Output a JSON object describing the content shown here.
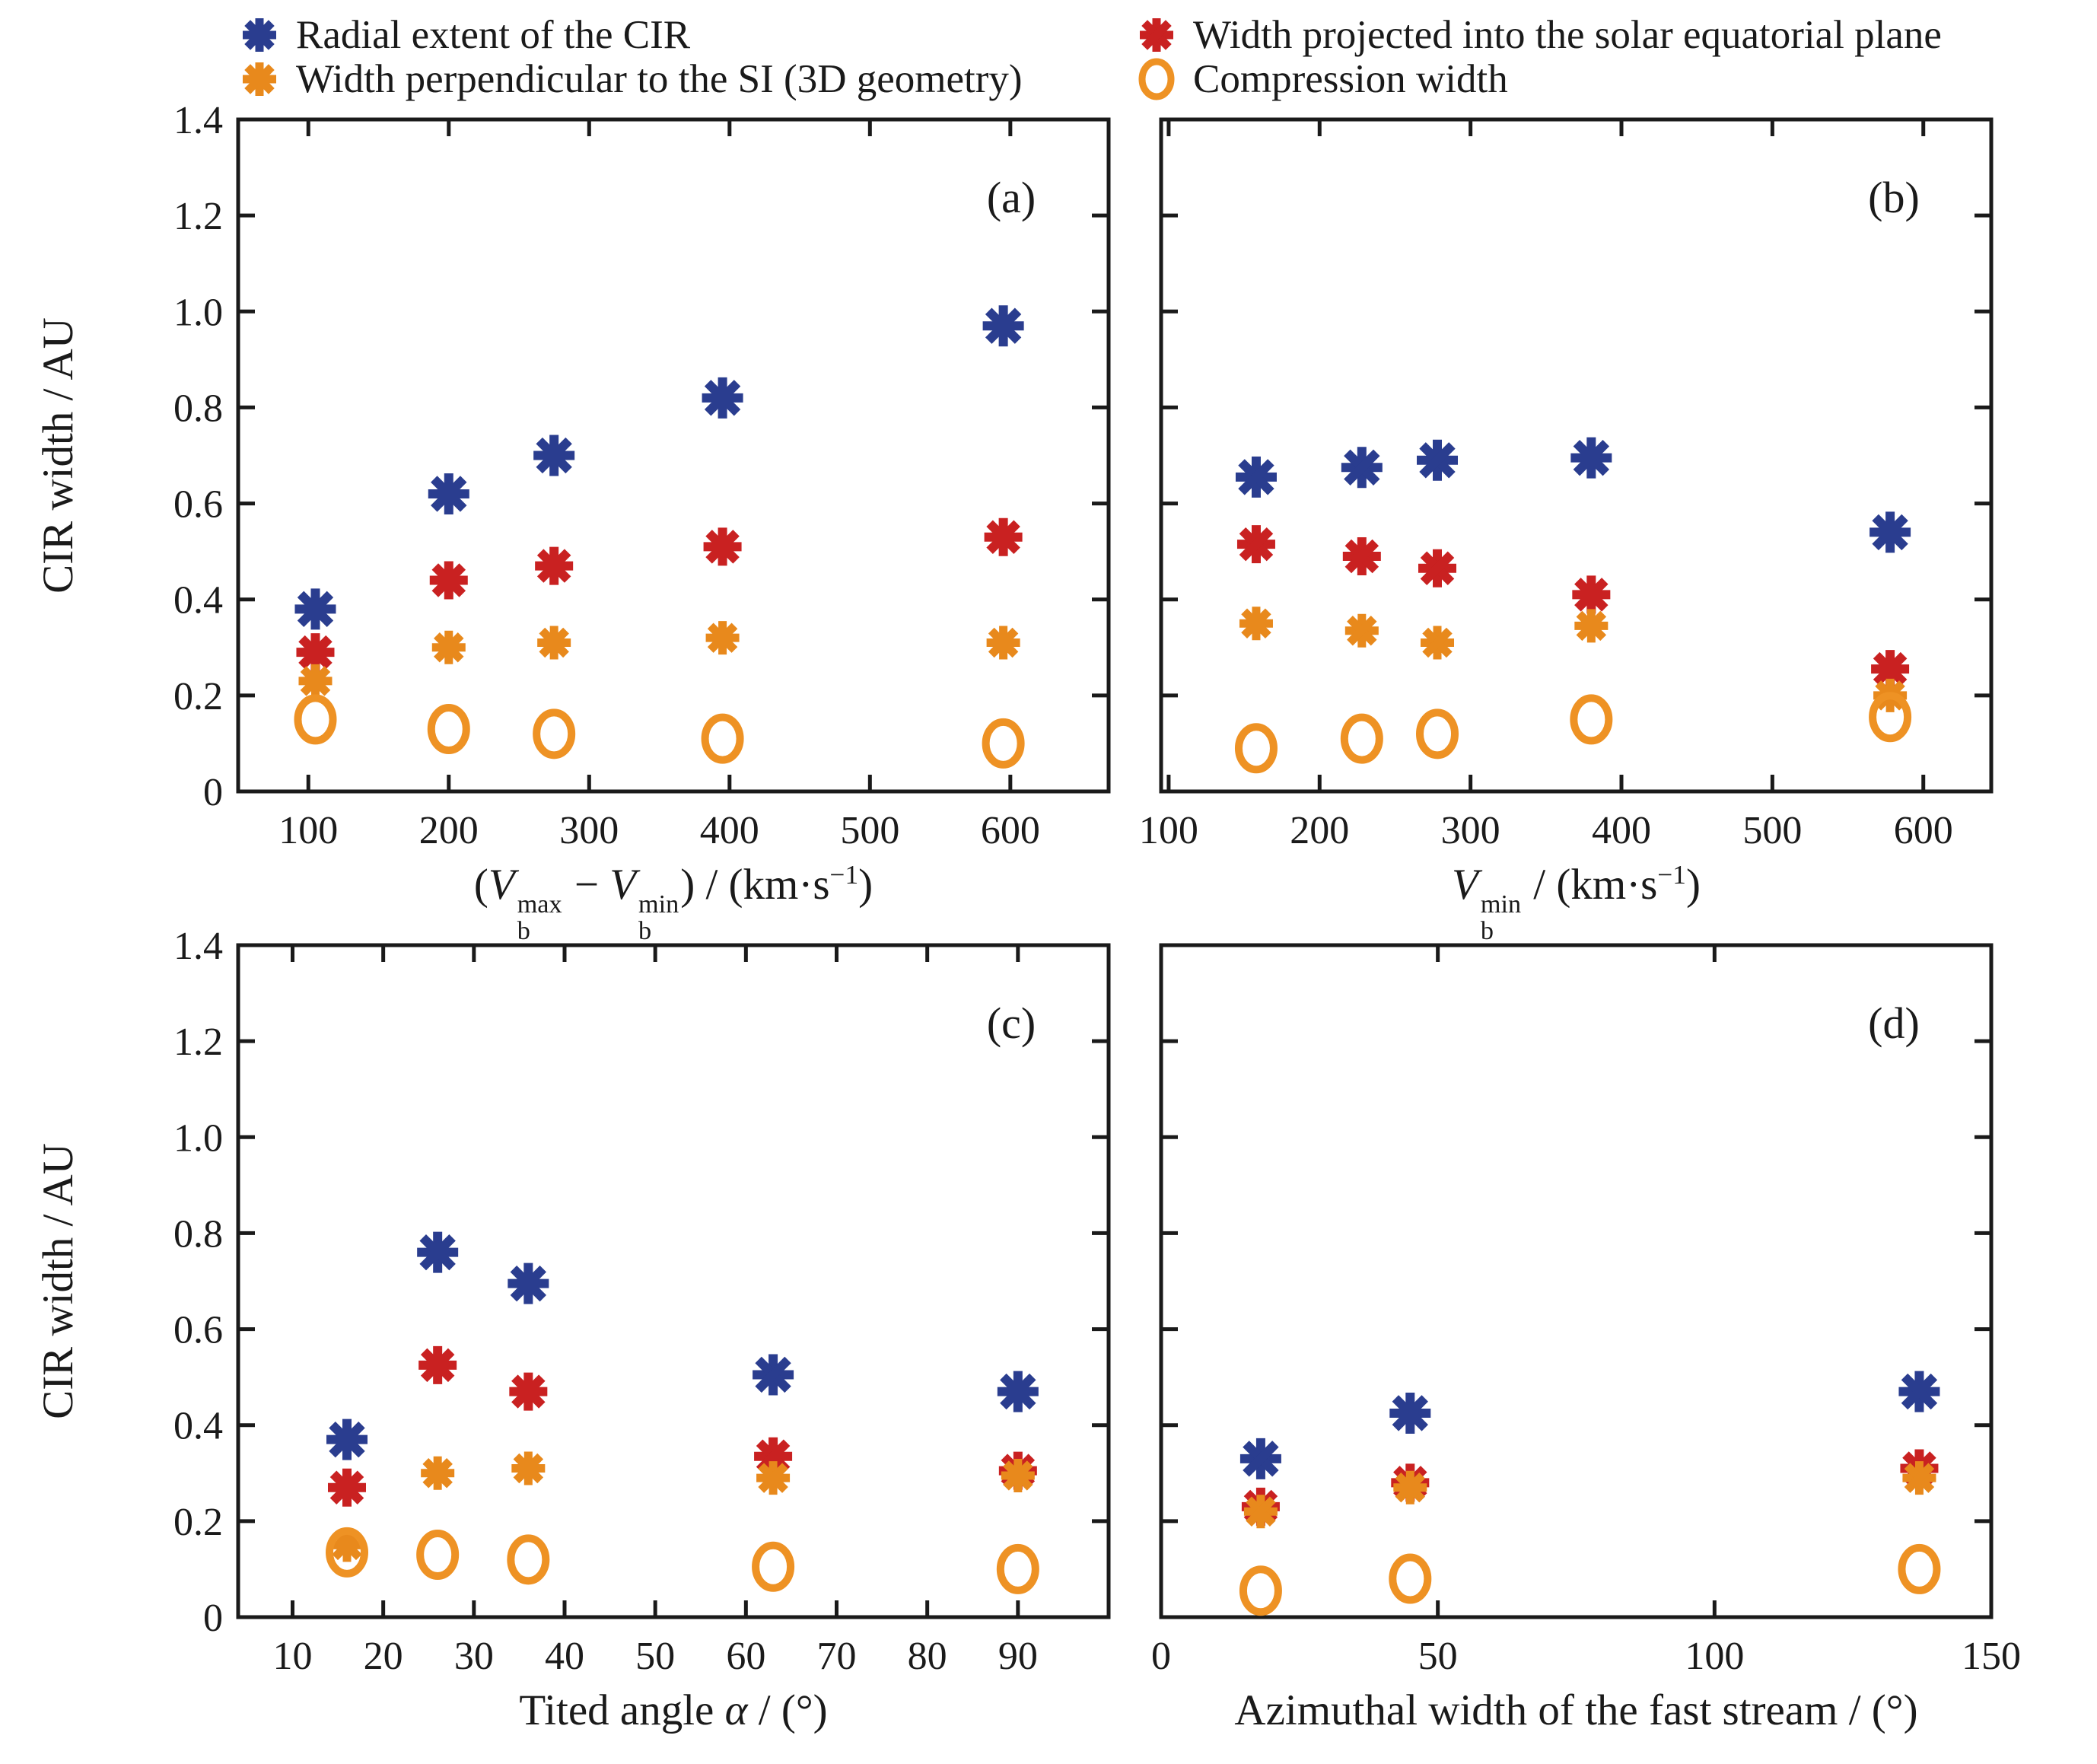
{
  "figure": {
    "background": "#ffffff",
    "frame_color": "#1a1a1a",
    "text_color": "#1a1a1a"
  },
  "colors": {
    "blue": "#2a3d8f",
    "red": "#c92121",
    "orange": "#e8891c",
    "orange_circle": "#ee9224"
  },
  "legend": {
    "items": [
      {
        "marker": "asterisk",
        "color": "#2a3d8f",
        "label": "Radial extent of the CIR",
        "column": 1,
        "row": 1
      },
      {
        "marker": "asterisk",
        "color": "#e8891c",
        "label": "Width perpendicular to the SI (3D geometry)",
        "column": 1,
        "row": 2
      },
      {
        "marker": "asterisk",
        "color": "#c92121",
        "label": "Width projected into the solar equatorial plane",
        "column": 2,
        "row": 1
      },
      {
        "marker": "circle",
        "color": "#ee9224",
        "label": "Compression width",
        "column": 2,
        "row": 2
      }
    ]
  },
  "chart_data": [
    {
      "type": "scatter",
      "panel_tag": "(a)",
      "ylabel": "CIR width / AU",
      "xlabel_segments": [
        {
          "t": "text",
          "v": "("
        },
        {
          "t": "ivar",
          "v": "V"
        },
        {
          "t": "supsub",
          "sup": "max",
          "sub": "b"
        },
        {
          "t": "text",
          "v": " − "
        },
        {
          "t": "ivar",
          "v": "V"
        },
        {
          "t": "supsub",
          "sup": "min",
          "sub": "b"
        },
        {
          "t": "text",
          "v": ") / (km·s"
        },
        {
          "t": "sup",
          "v": "−1"
        },
        {
          "t": "text",
          "v": ")"
        }
      ],
      "xlim": [
        50,
        670
      ],
      "ylim": [
        0,
        1.4
      ],
      "xticks": [
        100,
        200,
        300,
        400,
        500,
        600
      ],
      "ytick_labels": [
        "0",
        "0.2",
        "0.4",
        "0.6",
        "0.8",
        "1.0",
        "1.2",
        "1.4"
      ],
      "show_ytick_labels": true,
      "x": [
        105,
        200,
        275,
        395,
        595
      ],
      "series": [
        {
          "name": "Radial extent of the CIR",
          "marker": "asterisk",
          "color": "#2a3d8f",
          "values": [
            0.38,
            0.62,
            0.7,
            0.82,
            0.97
          ]
        },
        {
          "name": "Width projected into the solar equatorial plane",
          "marker": "asterisk",
          "color": "#c92121",
          "values": [
            0.29,
            0.44,
            0.47,
            0.51,
            0.53
          ]
        },
        {
          "name": "Width perpendicular to the SI (3D geometry)",
          "marker": "asterisk",
          "color": "#e8891c",
          "values": [
            0.23,
            0.3,
            0.31,
            0.32,
            0.31
          ]
        },
        {
          "name": "Compression width",
          "marker": "ellipse",
          "color": "#ee9224",
          "values": [
            0.15,
            0.13,
            0.12,
            0.11,
            0.1
          ]
        }
      ]
    },
    {
      "type": "scatter",
      "panel_tag": "(b)",
      "ylabel": "",
      "xlabel_segments": [
        {
          "t": "ivar",
          "v": "V"
        },
        {
          "t": "supsub",
          "sup": "min",
          "sub": "b"
        },
        {
          "t": "text",
          "v": " / (km·s"
        },
        {
          "t": "sup",
          "v": "−1"
        },
        {
          "t": "text",
          "v": ")"
        }
      ],
      "xlim": [
        95,
        645
      ],
      "ylim": [
        0,
        1.4
      ],
      "xticks": [
        100,
        200,
        300,
        400,
        500,
        600
      ],
      "ytick_labels": [
        "0",
        "0.2",
        "0.4",
        "0.6",
        "0.8",
        "1.0",
        "1.2",
        "1.4"
      ],
      "show_ytick_labels": false,
      "x": [
        158,
        228,
        278,
        380,
        578
      ],
      "series": [
        {
          "name": "Radial extent of the CIR",
          "marker": "asterisk",
          "color": "#2a3d8f",
          "values": [
            0.655,
            0.675,
            0.69,
            0.695,
            0.54
          ]
        },
        {
          "name": "Width projected into the solar equatorial plane",
          "marker": "asterisk",
          "color": "#c92121",
          "values": [
            0.515,
            0.49,
            0.465,
            0.41,
            0.255
          ]
        },
        {
          "name": "Width perpendicular to the SI (3D geometry)",
          "marker": "asterisk",
          "color": "#e8891c",
          "values": [
            0.35,
            0.335,
            0.31,
            0.345,
            0.2
          ]
        },
        {
          "name": "Compression width",
          "marker": "ellipse",
          "color": "#ee9224",
          "values": [
            0.09,
            0.11,
            0.12,
            0.15,
            0.155
          ]
        }
      ]
    },
    {
      "type": "scatter",
      "panel_tag": "(c)",
      "ylabel": "CIR width / AU",
      "xlabel_segments": [
        {
          "t": "text",
          "v": "Tited angle "
        },
        {
          "t": "ivar",
          "v": "α"
        },
        {
          "t": "text",
          "v": " / (°)"
        }
      ],
      "xlim": [
        4,
        100
      ],
      "ylim": [
        0,
        1.4
      ],
      "xticks": [
        10,
        20,
        30,
        40,
        50,
        60,
        70,
        80,
        90
      ],
      "ytick_labels": [
        "0",
        "0.2",
        "0.4",
        "0.6",
        "0.8",
        "1.0",
        "1.2",
        "1.4"
      ],
      "show_ytick_labels": true,
      "x": [
        16,
        26,
        36,
        63,
        90
      ],
      "series": [
        {
          "name": "Radial extent of the CIR",
          "marker": "asterisk",
          "color": "#2a3d8f",
          "values": [
            0.37,
            0.76,
            0.695,
            0.505,
            0.47
          ]
        },
        {
          "name": "Width projected into the solar equatorial plane",
          "marker": "asterisk",
          "color": "#c92121",
          "values": [
            0.27,
            0.525,
            0.47,
            0.335,
            0.305
          ]
        },
        {
          "name": "Width perpendicular to the SI (3D geometry)",
          "marker": "asterisk",
          "color": "#e8891c",
          "values": [
            0.15,
            0.3,
            0.31,
            0.29,
            0.295
          ]
        },
        {
          "name": "Compression width",
          "marker": "ellipse",
          "color": "#ee9224",
          "values": [
            0.135,
            0.13,
            0.12,
            0.105,
            0.1
          ]
        }
      ]
    },
    {
      "type": "scatter",
      "panel_tag": "(d)",
      "ylabel": "",
      "xlabel_segments": [
        {
          "t": "text",
          "v": "Azimuthal width of the fast stream / (°)"
        }
      ],
      "xlim": [
        0,
        150
      ],
      "ylim": [
        0,
        1.4
      ],
      "xticks": [
        0,
        50,
        100,
        150
      ],
      "ytick_labels": [
        "0",
        "0.2",
        "0.4",
        "0.6",
        "0.8",
        "1.0",
        "1.2",
        "1.4"
      ],
      "show_ytick_labels": false,
      "x": [
        18,
        45,
        137
      ],
      "series": [
        {
          "name": "Radial extent of the CIR",
          "marker": "asterisk",
          "color": "#2a3d8f",
          "values": [
            0.33,
            0.425,
            0.47
          ]
        },
        {
          "name": "Width projected into the solar equatorial plane",
          "marker": "asterisk",
          "color": "#c92121",
          "values": [
            0.23,
            0.28,
            0.31
          ]
        },
        {
          "name": "Width perpendicular to the SI (3D geometry)",
          "marker": "asterisk",
          "color": "#e8891c",
          "values": [
            0.22,
            0.27,
            0.29
          ]
        },
        {
          "name": "Compression width",
          "marker": "ellipse",
          "color": "#ee9224",
          "values": [
            0.055,
            0.08,
            0.1
          ]
        }
      ]
    }
  ]
}
